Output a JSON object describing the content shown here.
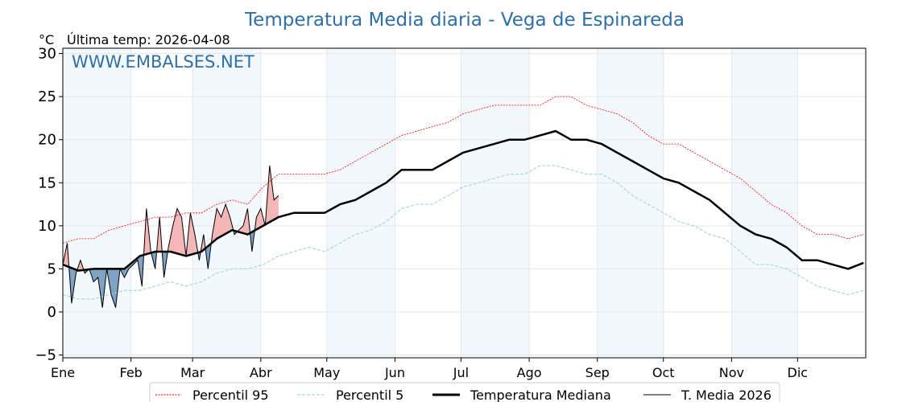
{
  "chart_data": {
    "type": "line",
    "title": "Temperatura Media diaria - Vega de Espinareda",
    "unit_label": "°C",
    "subtitle": "Última temp: 2026-04-08",
    "watermark": "WWW.EMBALSES.NET",
    "ylim": [
      -5,
      31
    ],
    "yticks": [
      -5,
      0,
      5,
      10,
      15,
      20,
      25,
      30
    ],
    "ytick_labels": [
      "−5",
      "0",
      "5",
      "10",
      "15",
      "20",
      "25",
      "30"
    ],
    "xlim_days": [
      0,
      365
    ],
    "months": [
      "Ene",
      "Feb",
      "Mar",
      "Abr",
      "May",
      "Jun",
      "Jul",
      "Ago",
      "Sep",
      "Oct",
      "Nov",
      "Dic"
    ],
    "month_start_days": [
      0,
      31,
      59,
      90,
      120,
      151,
      181,
      212,
      243,
      273,
      304,
      334
    ],
    "grid": true,
    "legend_position": "bottom-center",
    "colors": {
      "p95": "#ff0000",
      "p5": "#add8e6",
      "median": "#000000",
      "current": "#000000",
      "above": "#f4b6b6",
      "below": "#7ea2c2",
      "band": "#f3f8fc",
      "title": "#2e6fa7"
    },
    "series": [
      {
        "name": "Percentil 95",
        "x_step_days": 7,
        "values": [
          8,
          8.5,
          8.5,
          9.5,
          10,
          10.5,
          11,
          11,
          11.5,
          11.5,
          12.5,
          13,
          12.5,
          14.5,
          16,
          16,
          16,
          16,
          16.5,
          17.5,
          18.5,
          19.5,
          20.5,
          21,
          21.5,
          22,
          23,
          23.5,
          24,
          24,
          24,
          24,
          25,
          25,
          24,
          23.5,
          23,
          22,
          20.5,
          19.5,
          19.5,
          18.5,
          17.5,
          16.5,
          15.5,
          14,
          12.5,
          11.5,
          10,
          9,
          9,
          8.5,
          9
        ]
      },
      {
        "name": "Percentil 5",
        "x_step_days": 7,
        "values": [
          2,
          1.5,
          1.5,
          2,
          2.5,
          2.5,
          3,
          3.5,
          3,
          3.5,
          4.5,
          5,
          5,
          5.5,
          6.5,
          7,
          7.5,
          7,
          8,
          9,
          9.5,
          10.5,
          12,
          12.5,
          12.5,
          13.5,
          14.5,
          15,
          15.5,
          16,
          16,
          17,
          17,
          16.5,
          16,
          16,
          15,
          13.5,
          12.5,
          11.5,
          10.5,
          10,
          9,
          8.5,
          7,
          5.5,
          5.5,
          5,
          4,
          3,
          2.5,
          2,
          2.5
        ]
      },
      {
        "name": "Temperatura Mediana",
        "x_step_days": 7,
        "values": [
          5.5,
          4.8,
          5,
          5,
          5,
          6.5,
          7,
          7,
          6.5,
          7,
          8.5,
          9.5,
          9,
          10,
          11,
          11.5,
          11.5,
          11.5,
          12.5,
          13,
          14,
          15,
          16.5,
          16.5,
          16.5,
          17.5,
          18.5,
          19,
          19.5,
          20,
          20,
          20.5,
          21,
          20,
          20,
          19.5,
          18.5,
          17.5,
          16.5,
          15.5,
          15,
          14,
          13,
          11.5,
          10,
          9,
          8.5,
          7.5,
          6,
          6,
          5.5,
          5,
          5.7
        ]
      },
      {
        "name": "T. Media 2026",
        "x_step_days": 2,
        "values": [
          5.5,
          8,
          1,
          4.5,
          6,
          4.5,
          5,
          3.5,
          4,
          0.5,
          5,
          2,
          0.5,
          5,
          4,
          5,
          5.5,
          6,
          3,
          12,
          7,
          5,
          11,
          4,
          7.5,
          10,
          12,
          11,
          6.5,
          11.5,
          9,
          6,
          9,
          5,
          9,
          12,
          11,
          12.5,
          11,
          9,
          9.5,
          10,
          12,
          7,
          11,
          12,
          10,
          17,
          13,
          13.5
        ]
      }
    ]
  }
}
